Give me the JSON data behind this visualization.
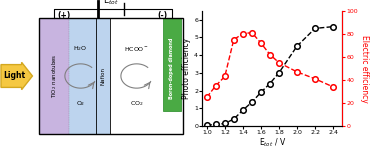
{
  "fig_width": 3.78,
  "fig_height": 1.52,
  "dpi": 100,
  "black_x": [
    1.0,
    1.1,
    1.2,
    1.3,
    1.4,
    1.5,
    1.6,
    1.7,
    1.8,
    2.0,
    2.2,
    2.4
  ],
  "black_y": [
    0.05,
    0.1,
    0.15,
    0.4,
    0.9,
    1.35,
    1.9,
    2.4,
    3.0,
    4.5,
    5.5,
    5.6
  ],
  "red_x": [
    1.0,
    1.1,
    1.2,
    1.3,
    1.4,
    1.5,
    1.6,
    1.7,
    1.8,
    2.0,
    2.2,
    2.4
  ],
  "red_y": [
    25,
    35,
    43,
    75,
    80,
    81,
    72,
    62,
    55,
    47,
    41,
    34
  ],
  "xlabel": "E$_{tot}$ / V",
  "ylabel_left": "Photo efficiency",
  "ylabel_right": "Electric efficiency",
  "xlim": [
    0.95,
    2.5
  ],
  "ylim_left": [
    0,
    6.5
  ],
  "ylim_right": [
    0,
    100
  ],
  "yticks_left": [
    0,
    1,
    2,
    3,
    4,
    5,
    6
  ],
  "yticks_right": [
    0,
    20,
    40,
    60,
    80,
    100
  ],
  "xticks": [
    1.0,
    1.2,
    1.4,
    1.6,
    1.8,
    2.0,
    2.2,
    2.4
  ],
  "background_color": "#ffffff",
  "arrow_color": "#f5c842",
  "light_text": "Light",
  "anode_color": "#c8b4e0",
  "nafion_color": "#bdd4ee",
  "cathode_color": "#4aaa44",
  "plus_text": "(+)",
  "minus_text": "(-)",
  "etot_text": "E$_{tot}$",
  "tio2_text": "TiO$_2$ nanotubes",
  "nafion_text": "Nafion",
  "bdd_text": "Boron-doped diamond",
  "h2o_text": "H$_2$O",
  "o2_text": "O$_2$",
  "hcoo_text": "HCOO$^-$",
  "co2_text": "CO$_2$"
}
